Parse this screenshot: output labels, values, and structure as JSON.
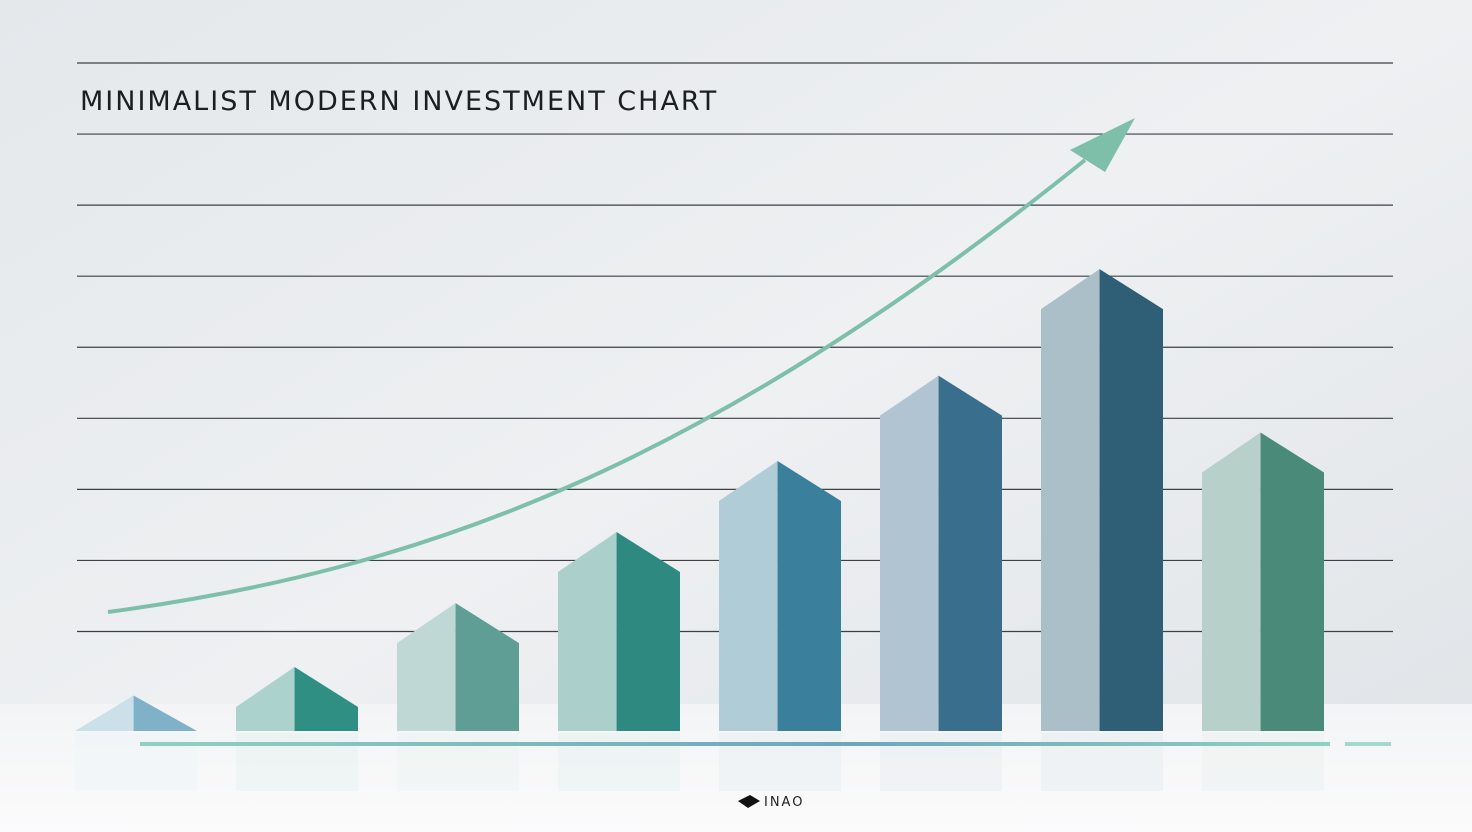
{
  "chart_data": {
    "type": "bar",
    "title": "MINIMALIST MODERN INVESTMENT CHART",
    "categories": [
      null,
      null,
      null,
      null,
      null,
      null,
      null,
      null
    ],
    "values": [
      0.5,
      0.9,
      1.8,
      2.8,
      3.8,
      5.0,
      6.5,
      4.2
    ],
    "colors": [
      "#7fb2c9",
      "#2f8f83",
      "#5e9e95",
      "#2e8a80",
      "#3a7f9c",
      "#396f8c",
      "#2e5f76",
      "#4a8a78"
    ],
    "ylim": [
      0,
      9.4
    ],
    "yticks": [
      1.4,
      2.4,
      3.4,
      4.4,
      5.4,
      6.4,
      7.4,
      8.4,
      9.4
    ],
    "grid": true,
    "logo": "INAO"
  }
}
